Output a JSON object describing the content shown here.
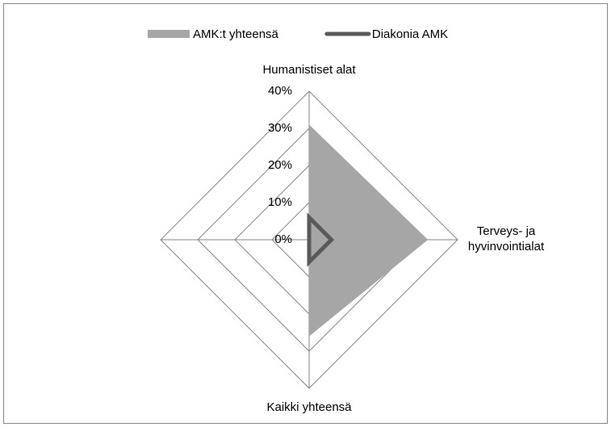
{
  "chart_data": {
    "type": "radar",
    "categories": [
      "Humanistiset alat",
      "Terveys- ja hyvinvointialat",
      "Kaikki yhteensä",
      null
    ],
    "series": [
      {
        "name": "AMK:t yhteensä",
        "color": "#a6a6a6",
        "fill": true,
        "values": [
          31,
          32,
          26,
          0
        ]
      },
      {
        "name": "Diakonia AMK",
        "color": "#595959",
        "fill": false,
        "values": [
          6,
          6,
          6,
          0
        ]
      }
    ],
    "ylim": [
      0,
      40
    ],
    "yticks": [
      {
        "value": 0,
        "label": "0%"
      },
      {
        "value": 10,
        "label": "10%"
      },
      {
        "value": 20,
        "label": "20%"
      },
      {
        "value": 30,
        "label": "30%"
      },
      {
        "value": 40,
        "label": "40%"
      }
    ],
    "grid": true,
    "legend": "top"
  }
}
